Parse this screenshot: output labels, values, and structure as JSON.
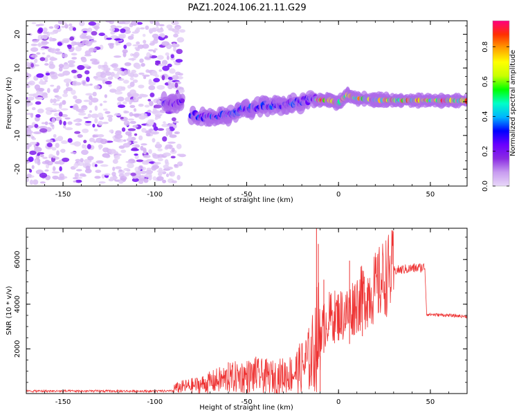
{
  "figure_title": "PAZ1.2024.106.21.11.G29",
  "chart_data": [
    {
      "type": "heatmap",
      "xlabel": "Height of straight line (km)",
      "ylabel": "Frequency (Hz)",
      "xlim": [
        -170,
        70
      ],
      "ylim": [
        -25,
        24
      ],
      "x_ticks": [
        -150,
        -100,
        -50,
        0,
        50
      ],
      "x_tick_labels": [
        "-150",
        "-100",
        "-50",
        "0",
        "50"
      ],
      "y_ticks": [
        20,
        10,
        0,
        -10,
        -20
      ],
      "y_tick_labels": [
        "20",
        "10",
        "0",
        "-10",
        "-20"
      ],
      "colorbar": {
        "label": "Normalized spectral amplitude",
        "range": [
          0,
          0.95
        ],
        "ticks": [
          0.0,
          0.2,
          0.4,
          0.6,
          0.8
        ],
        "tick_labels": [
          "0.0",
          "0.2",
          "0.4",
          "0.6",
          "0.8"
        ],
        "colormap": [
          "#e8d8f8",
          "#c89cf0",
          "#8a2be2",
          "#6a00ff",
          "#0000ff",
          "#00b4ff",
          "#00ffc8",
          "#00ff00",
          "#c8ff00",
          "#ffff00",
          "#ffa000",
          "#ff3000",
          "#ff0080"
        ]
      },
      "features": [
        {
          "kind": "noise",
          "x_range": [
            -170,
            -85
          ],
          "f_range": [
            -24,
            24
          ],
          "level": 0.05
        },
        {
          "kind": "ridge",
          "points": [
            [
              -95,
              0
            ],
            [
              -90,
              -0.5
            ],
            [
              -85,
              0
            ]
          ],
          "level": 0.3
        },
        {
          "kind": "ridge",
          "points": [
            [
              -80,
              -4
            ],
            [
              -70,
              -4.5
            ],
            [
              -60,
              -4
            ],
            [
              -50,
              -2
            ],
            [
              -40,
              -1
            ],
            [
              -30,
              -1
            ],
            [
              -20,
              0
            ],
            [
              -12,
              1
            ]
          ],
          "level": 0.35
        },
        {
          "kind": "ridge",
          "points": [
            [
              -12,
              0.5
            ],
            [
              -5,
              0.5
            ],
            [
              0,
              -0.5
            ],
            [
              5,
              2
            ],
            [
              10,
              1
            ],
            [
              20,
              0.5
            ],
            [
              70,
              0.3
            ]
          ],
          "level": 0.9
        }
      ]
    },
    {
      "type": "line",
      "xlabel": "Height of straight line (km)",
      "ylabel": "SNR (10 * v/v)",
      "xlim": [
        -170,
        70
      ],
      "ylim": [
        0,
        7400
      ],
      "x_ticks": [
        -150,
        -100,
        -50,
        0,
        50
      ],
      "x_tick_labels": [
        "-150",
        "-100",
        "-50",
        "0",
        "50"
      ],
      "y_ticks": [
        2000,
        4000,
        6000
      ],
      "y_tick_labels": [
        "2000",
        "4000",
        "6000"
      ],
      "color": "#ee3333",
      "envelope_points": [
        {
          "x": -170,
          "y": 100
        },
        {
          "x": -120,
          "y": 120
        },
        {
          "x": -95,
          "y": 150
        },
        {
          "x": -85,
          "y": 300
        },
        {
          "x": -75,
          "y": 400
        },
        {
          "x": -65,
          "y": 600
        },
        {
          "x": -55,
          "y": 750
        },
        {
          "x": -45,
          "y": 800
        },
        {
          "x": -35,
          "y": 750
        },
        {
          "x": -25,
          "y": 900
        },
        {
          "x": -20,
          "y": 1200
        },
        {
          "x": -15,
          "y": 1600
        },
        {
          "x": -12,
          "y": 2400
        },
        {
          "x": -10,
          "y": 2800
        },
        {
          "x": -5,
          "y": 3400
        },
        {
          "x": 0,
          "y": 3500
        },
        {
          "x": 5,
          "y": 3600
        },
        {
          "x": 10,
          "y": 4100
        },
        {
          "x": 15,
          "y": 4400
        },
        {
          "x": 20,
          "y": 4700
        },
        {
          "x": 25,
          "y": 5200
        },
        {
          "x": 30,
          "y": 5500
        },
        {
          "x": 40,
          "y": 5600
        },
        {
          "x": 47,
          "y": 5650
        },
        {
          "x": 48,
          "y": 3550
        },
        {
          "x": 60,
          "y": 3500
        },
        {
          "x": 70,
          "y": 3450
        }
      ],
      "spikes": [
        {
          "x": -12,
          "y": 7400
        },
        {
          "x": -11,
          "y": 6700
        },
        {
          "x": -10,
          "y": 100
        },
        {
          "x": 6,
          "y": 5950
        },
        {
          "x": 13,
          "y": 5500
        },
        {
          "x": -60,
          "y": 1400
        },
        {
          "x": -45,
          "y": 1650
        },
        {
          "x": -8,
          "y": 5100
        }
      ]
    }
  ]
}
